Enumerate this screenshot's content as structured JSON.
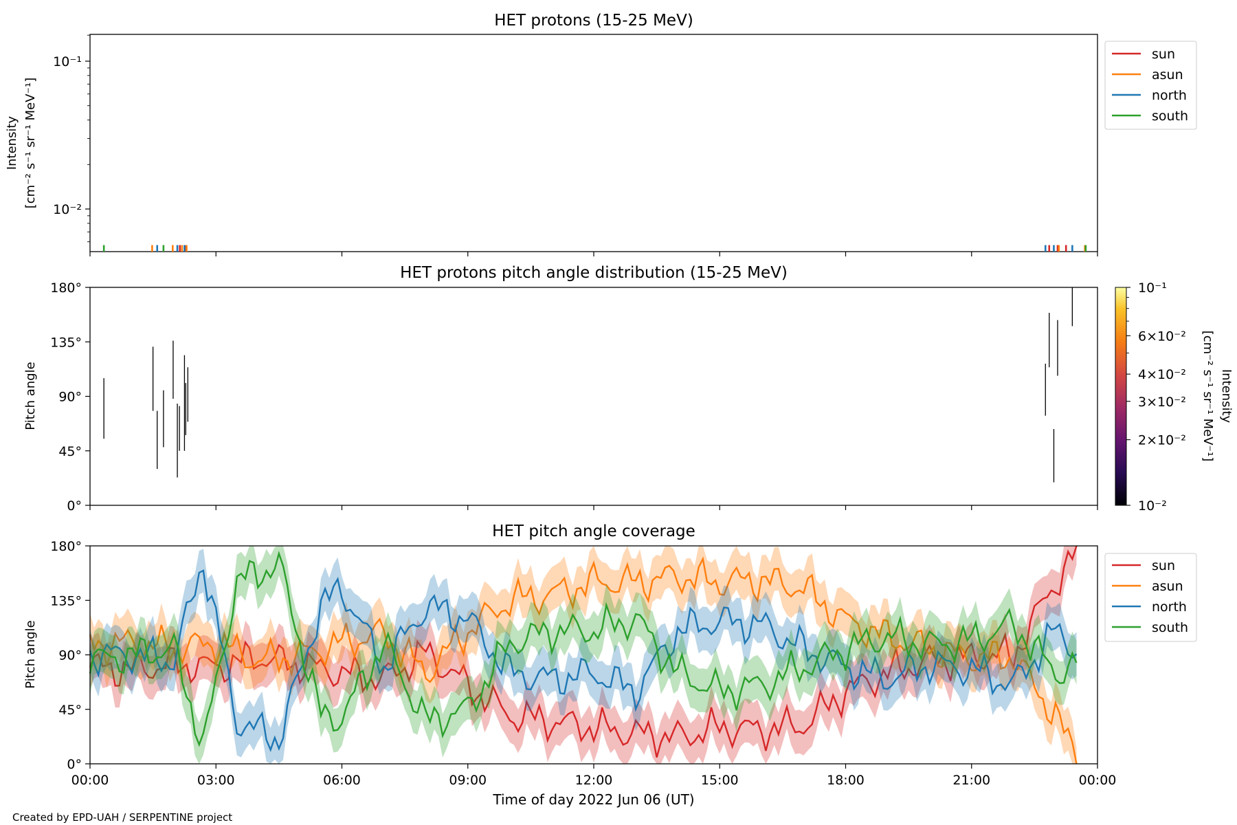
{
  "footer": "Created by EPD-UAH / SERPENTINE project",
  "xaxis": {
    "label": "Time of day 2022 Jun 06 (UT)",
    "ticks": [
      "00:00",
      "03:00",
      "06:00",
      "09:00",
      "12:00",
      "15:00",
      "18:00",
      "21:00",
      "00:00"
    ]
  },
  "series_colors": {
    "sun": "#d62728",
    "asun": "#ff7f0e",
    "north": "#1f77b4",
    "south": "#2ca02c"
  },
  "legend": [
    "sun",
    "asun",
    "north",
    "south"
  ],
  "chart_data": [
    {
      "type": "line",
      "title": "HET protons (15-25 MeV)",
      "xlabel": "",
      "ylabel": [
        "Intensity",
        "[cm⁻² s⁻¹ sr⁻¹ MeV⁻¹]"
      ],
      "yscale": "log",
      "yticks": [
        "10⁻¹",
        "10⁻²"
      ],
      "xlim_hours": [
        0,
        24
      ],
      "legend_position": "outside-right",
      "series": [
        {
          "name": "sun",
          "x_hours": [
            2.14,
            2.27,
            22.85,
            23.05,
            23.25
          ],
          "intensity": [
            0.0057,
            0.0057,
            0.0057,
            0.0057,
            0.0057
          ]
        },
        {
          "name": "asun",
          "x_hours": [
            1.48,
            1.97,
            2.19,
            2.3,
            23.08,
            23.7
          ],
          "intensity": [
            0.0057,
            0.0057,
            0.0057,
            0.0057,
            0.0057,
            0.0057
          ]
        },
        {
          "name": "north",
          "x_hours": [
            1.6,
            2.08,
            2.25,
            22.76,
            22.96,
            23.4
          ],
          "intensity": [
            0.0057,
            0.0057,
            0.0057,
            0.0057,
            0.0057,
            0.0057
          ]
        },
        {
          "name": "south",
          "x_hours": [
            0.33,
            1.75,
            23.72
          ],
          "intensity": [
            0.0057,
            0.0057,
            0.0057
          ]
        }
      ]
    },
    {
      "type": "heatmap",
      "title": "HET protons pitch angle distribution (15-25 MeV)",
      "ylabel": "Pitch angle",
      "yticks": [
        "180°",
        "135°",
        "90°",
        "45°",
        "0°"
      ],
      "ylim_deg": [
        0,
        180
      ],
      "colorbar": {
        "label": [
          "Intensity",
          "[cm⁻² s⁻¹ sr⁻¹ MeV⁻¹]"
        ],
        "scale": "log",
        "range": [
          0.01,
          0.1
        ],
        "ticks": [
          {
            "value": 0.1,
            "label": "10⁻¹"
          },
          {
            "value": 0.06,
            "label": "6×10⁻²"
          },
          {
            "value": 0.04,
            "label": "4×10⁻²"
          },
          {
            "value": 0.03,
            "label": "3×10⁻²"
          },
          {
            "value": 0.02,
            "label": "2×10⁻²"
          },
          {
            "value": 0.01,
            "label": "10⁻²"
          }
        ]
      },
      "segments": [
        {
          "x_hours": 0.33,
          "deg": [
            55,
            105
          ]
        },
        {
          "x_hours": 1.5,
          "deg": [
            78,
            131
          ]
        },
        {
          "x_hours": 1.6,
          "deg": [
            30,
            78
          ]
        },
        {
          "x_hours": 1.75,
          "deg": [
            48,
            95
          ]
        },
        {
          "x_hours": 1.98,
          "deg": [
            88,
            136
          ]
        },
        {
          "x_hours": 2.08,
          "deg": [
            23,
            84
          ]
        },
        {
          "x_hours": 2.13,
          "deg": [
            45,
            82
          ]
        },
        {
          "x_hours": 2.25,
          "deg": [
            45,
            124
          ]
        },
        {
          "x_hours": 2.28,
          "deg": [
            58,
            101
          ]
        },
        {
          "x_hours": 2.33,
          "deg": [
            69,
            114
          ]
        },
        {
          "x_hours": 22.76,
          "deg": [
            74,
            117
          ]
        },
        {
          "x_hours": 22.85,
          "deg": [
            114,
            159
          ]
        },
        {
          "x_hours": 22.96,
          "deg": [
            19,
            63
          ]
        },
        {
          "x_hours": 23.05,
          "deg": [
            107,
            153
          ]
        },
        {
          "x_hours": 23.4,
          "deg": [
            148,
            180
          ]
        }
      ]
    },
    {
      "type": "line",
      "title": "HET pitch angle coverage",
      "ylabel": "Pitch angle",
      "yticks": [
        "180°",
        "135°",
        "90°",
        "45°",
        "0°"
      ],
      "ylim_deg": [
        0,
        180
      ],
      "xlim_hours": [
        0,
        24
      ],
      "legend_position": "outside-right",
      "band_halfwidth_deg": 18,
      "series": [
        {
          "name": "sun",
          "x_hours": [
            0,
            1,
            2,
            3,
            4,
            5,
            6,
            7,
            8,
            9,
            10,
            11,
            12,
            13,
            14,
            15,
            16,
            17,
            18,
            19,
            20,
            21,
            22,
            23,
            23.5
          ],
          "deg": [
            80,
            78,
            82,
            80,
            88,
            82,
            75,
            70,
            92,
            65,
            40,
            35,
            30,
            25,
            22,
            30,
            28,
            32,
            60,
            75,
            85,
            88,
            90,
            150,
            175
          ]
        },
        {
          "name": "asun",
          "x_hours": [
            0,
            1,
            2,
            3,
            4,
            5,
            6,
            7,
            8,
            9,
            10,
            11,
            12,
            13,
            14,
            15,
            16,
            17,
            18,
            19,
            20,
            21,
            22,
            23,
            23.5
          ],
          "deg": [
            98,
            100,
            95,
            100,
            85,
            90,
            100,
            108,
            75,
            110,
            135,
            140,
            150,
            150,
            155,
            150,
            152,
            145,
            118,
            105,
            95,
            88,
            88,
            40,
            5
          ]
        },
        {
          "name": "north",
          "x_hours": [
            0,
            1,
            2,
            2.7,
            3.5,
            4.5,
            5.5,
            6,
            7,
            8,
            9,
            10,
            11,
            12,
            13,
            14,
            15,
            16,
            17,
            18,
            19,
            20,
            21,
            22,
            23,
            23.5
          ],
          "deg": [
            90,
            90,
            85,
            168,
            35,
            20,
            130,
            145,
            80,
            130,
            120,
            75,
            70,
            75,
            60,
            110,
            118,
            115,
            95,
            80,
            70,
            82,
            78,
            65,
            110,
            95
          ]
        },
        {
          "name": "south",
          "x_hours": [
            0,
            1,
            2,
            2.7,
            3.5,
            4.5,
            5.5,
            6,
            7,
            8,
            9,
            10,
            11,
            12,
            13,
            14,
            15,
            16,
            17,
            18,
            19,
            20,
            21,
            22,
            23,
            23.5
          ],
          "deg": [
            85,
            90,
            95,
            15,
            150,
            165,
            40,
            38,
            100,
            35,
            45,
            100,
            110,
            110,
            120,
            75,
            60,
            65,
            80,
            95,
            105,
            98,
            102,
            115,
            75,
            82
          ]
        }
      ]
    }
  ]
}
